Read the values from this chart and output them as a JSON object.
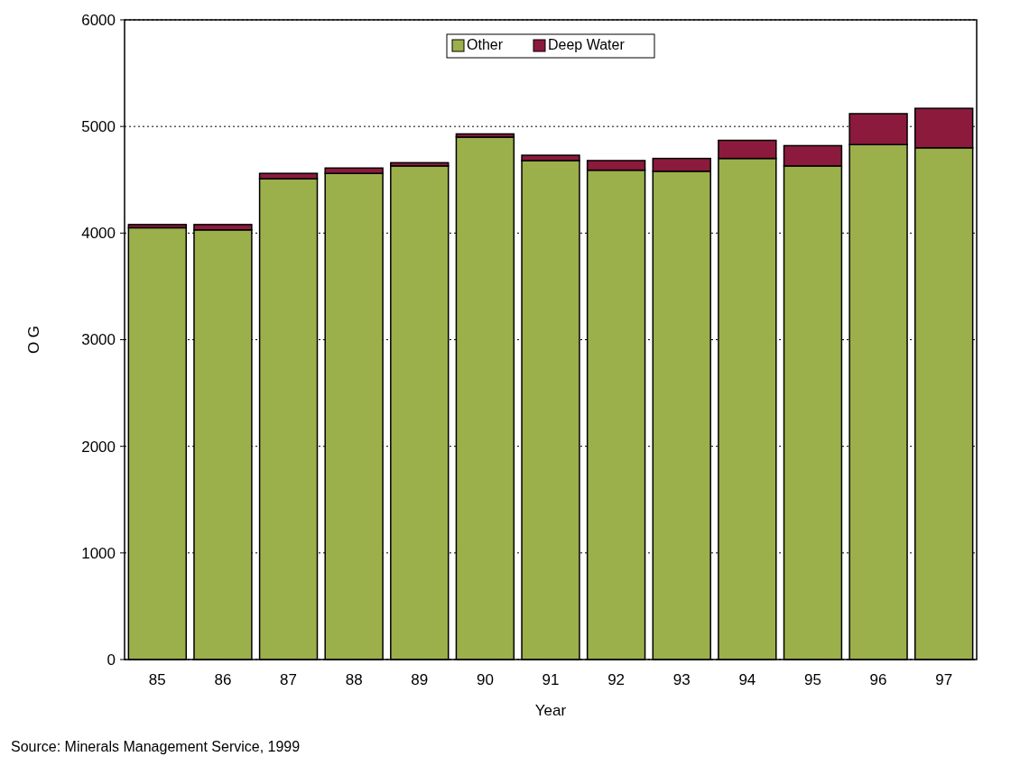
{
  "chart_data": {
    "type": "bar",
    "stacked": true,
    "xlabel": "Year",
    "ylabel": "O G",
    "categories": [
      "85",
      "86",
      "87",
      "88",
      "89",
      "90",
      "91",
      "92",
      "93",
      "94",
      "95",
      "96",
      "97"
    ],
    "series": [
      {
        "name": "Other",
        "color": "#9bb04b",
        "values": [
          4050,
          4030,
          4510,
          4560,
          4630,
          4900,
          4680,
          4590,
          4580,
          4700,
          4630,
          4830,
          4800
        ]
      },
      {
        "name": "Deep Water",
        "color": "#8c1a3c",
        "values": [
          30,
          50,
          50,
          50,
          30,
          30,
          50,
          90,
          120,
          170,
          190,
          290,
          370
        ]
      }
    ],
    "ylim": [
      0,
      6000
    ],
    "yticks": [
      0,
      1000,
      2000,
      3000,
      4000,
      5000,
      6000
    ],
    "grid": "y",
    "legend": "top",
    "annotations": [
      "Source: Minerals Management Service, 1999"
    ]
  }
}
